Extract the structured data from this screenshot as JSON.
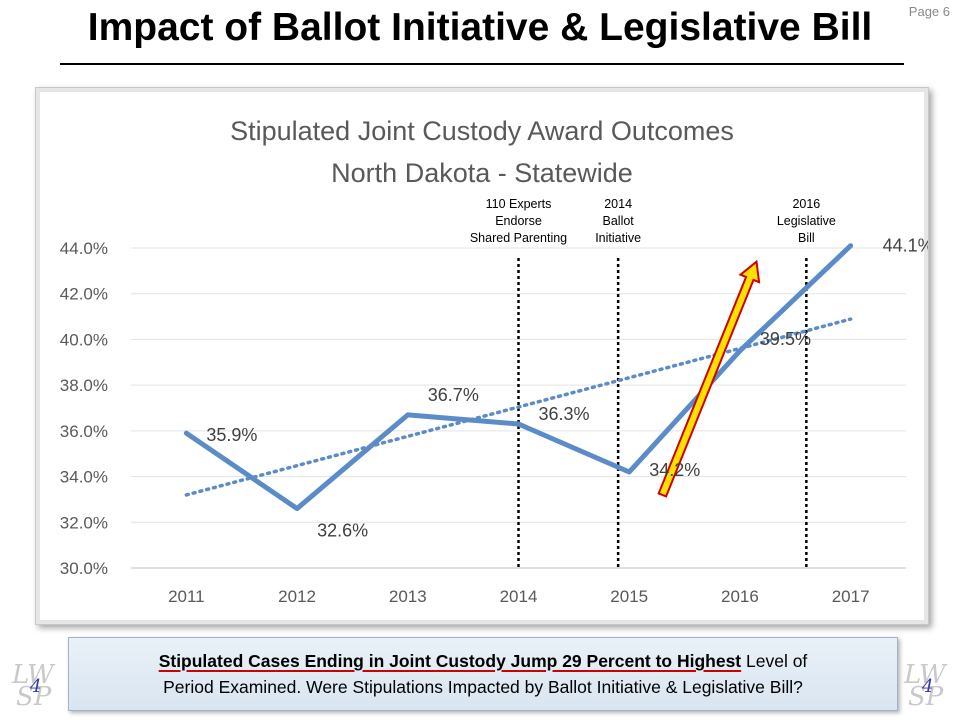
{
  "page": {
    "number": "Page 6"
  },
  "slide": {
    "title": "Impact of Ballot Initiative & Legislative Bill"
  },
  "chart_data": {
    "type": "line",
    "title": "Stipulated Joint Custody Award Outcomes",
    "subtitle": "North Dakota - Statewide",
    "categories": [
      "2011",
      "2012",
      "2013",
      "2014",
      "2015",
      "2016",
      "2017"
    ],
    "series": [
      {
        "values": [
          35.9,
          32.6,
          36.7,
          36.3,
          34.2,
          39.5,
          44.1
        ],
        "labels": [
          "35.9%",
          "32.6%",
          "36.7%",
          "36.3%",
          "34.2%",
          "39.5%",
          "44.1%"
        ],
        "color": "#5b8cc8"
      }
    ],
    "trendline": {
      "type": "linear",
      "style": "dotted",
      "color": "#5b8cc8"
    },
    "ylim": [
      30,
      44
    ],
    "yticks": [
      "30.0%",
      "32.0%",
      "34.0%",
      "36.0%",
      "38.0%",
      "40.0%",
      "42.0%",
      "44.0%"
    ],
    "grid": true,
    "xlabel": "",
    "ylabel": "",
    "annotations": [
      {
        "lines": [
          "110 Experts",
          "Endorse",
          "Shared Parenting"
        ],
        "x": 3.0
      },
      {
        "lines": [
          "2014",
          "Ballot",
          "Initiative"
        ],
        "x": 3.9
      },
      {
        "lines": [
          "2016",
          "Legislative",
          "Bill"
        ],
        "x": 5.6
      }
    ],
    "arrow": {
      "from": [
        4.8,
        33.2
      ],
      "to": [
        5.65,
        43.4
      ],
      "fill": "#ffe000",
      "stroke": "#d00000"
    }
  },
  "caption": {
    "highlight": "Stipulated Cases Ending in Joint Custody Jump 29 Percent to Highest",
    "rest1": " Level of",
    "line2": "Period Examined. Were Stipulations Impacted by Ballot Initiative & Legislative Bill?"
  },
  "logo": {
    "top": "LW",
    "bottom": "SP",
    "number": "4"
  }
}
